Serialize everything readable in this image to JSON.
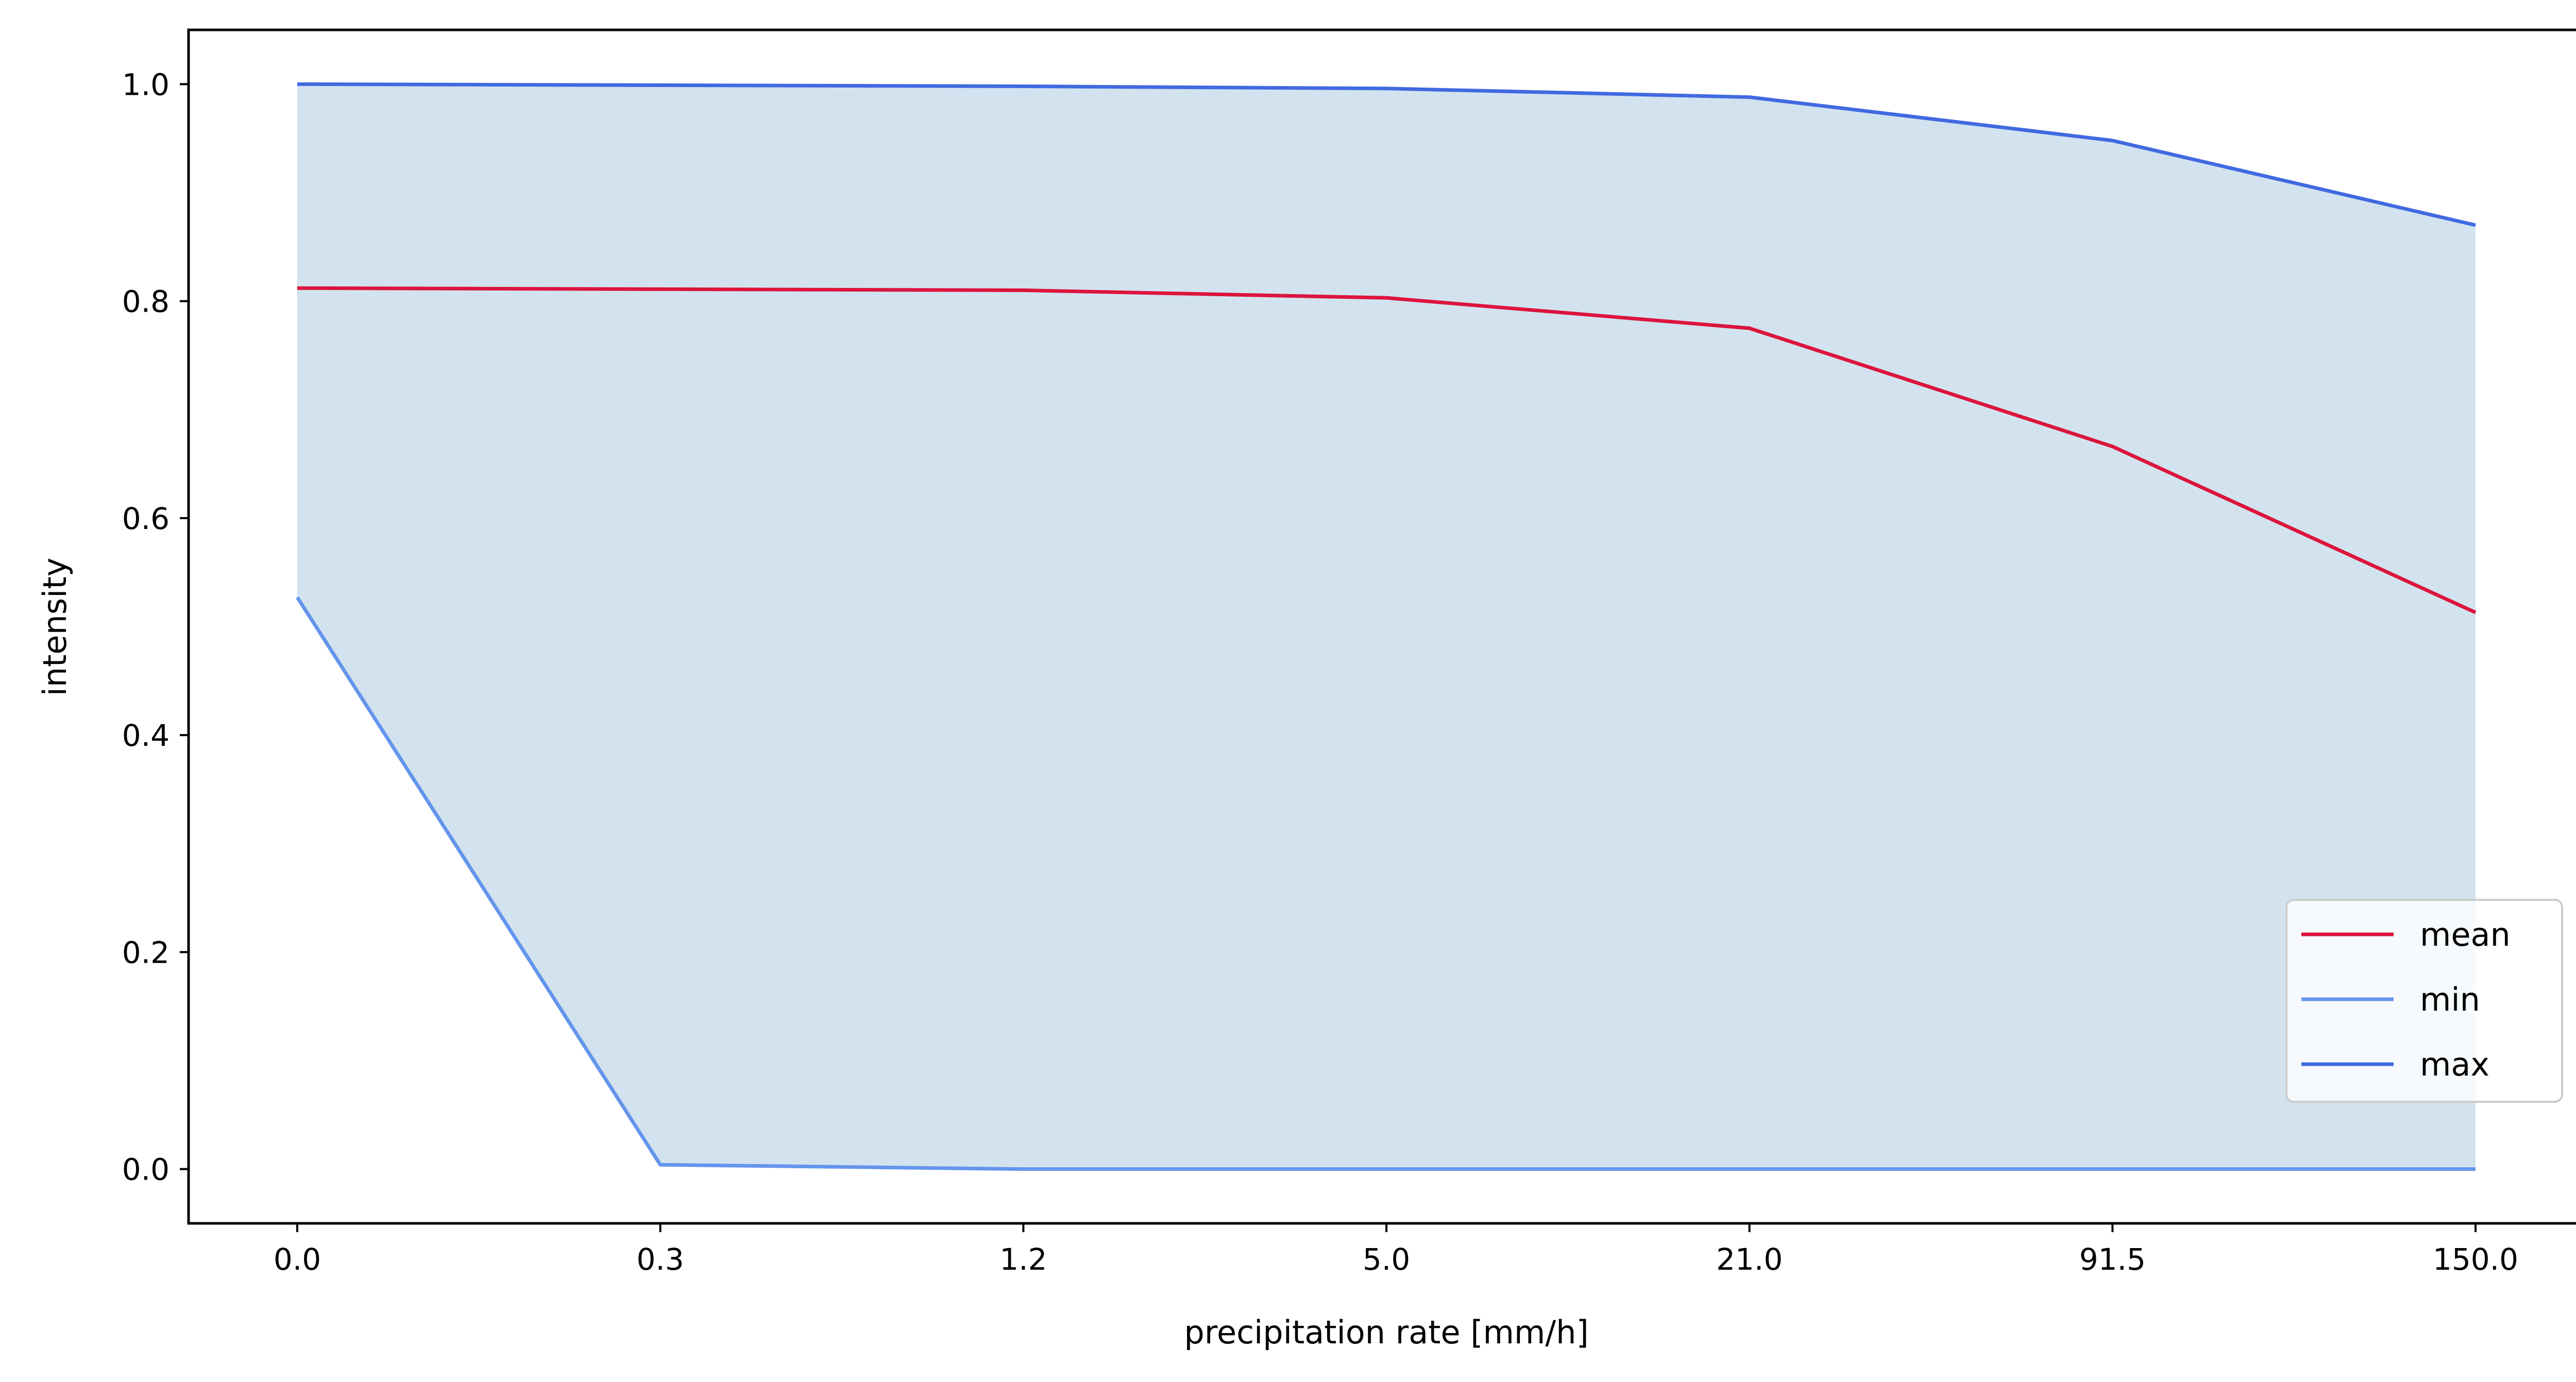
{
  "chart_data": {
    "type": "line",
    "xlabel": "precipitation rate [mm/h]",
    "ylabel": "intensity",
    "categories": [
      "0.0",
      "0.3",
      "1.2",
      "5.0",
      "21.0",
      "91.5",
      "150.0"
    ],
    "ylim": [
      -0.05,
      1.05
    ],
    "yticks": [
      "0.0",
      "0.2",
      "0.4",
      "0.6",
      "0.8",
      "1.0"
    ],
    "grid": false,
    "legend_position": "lower-right",
    "series": [
      {
        "name": "mean",
        "color": "#dc143c",
        "values": [
          0.812,
          0.811,
          0.81,
          0.803,
          0.775,
          0.666,
          0.513
        ]
      },
      {
        "name": "min",
        "color": "#6495ed",
        "values": [
          0.527,
          0.004,
          0.0,
          0.0,
          0.0,
          0.0,
          0.0
        ]
      },
      {
        "name": "max",
        "color": "#4169e1",
        "values": [
          1.0,
          0.999,
          0.998,
          0.996,
          0.988,
          0.948,
          0.87
        ]
      }
    ],
    "fill_between": {
      "lower": "min",
      "upper": "max",
      "color": "#d2e3ef"
    }
  }
}
